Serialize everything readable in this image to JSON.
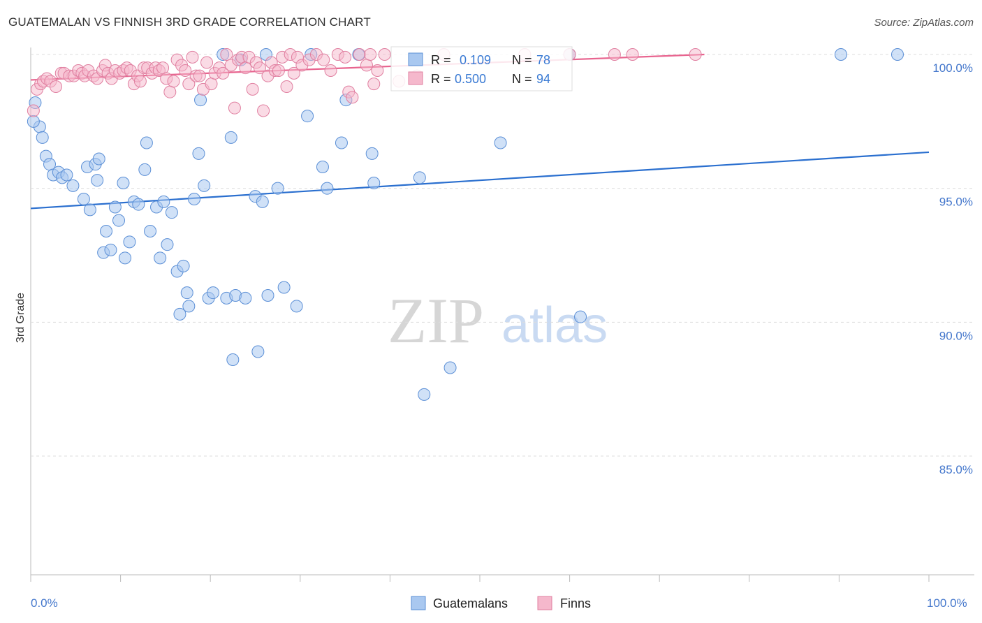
{
  "title": "GUATEMALAN VS FINNISH 3RD GRADE CORRELATION CHART",
  "source": "Source: ZipAtlas.com",
  "watermark": {
    "zip": "ZIP",
    "atlas": "atlas"
  },
  "legend_box": [
    {
      "r_label": "R = ",
      "r_value": "0.109",
      "n_label": "N = ",
      "n_value": "78"
    },
    {
      "r_label": "R = ",
      "r_value": "0.500",
      "n_label": "N = ",
      "n_value": "94"
    }
  ],
  "bottom_legend": [
    "Guatemalans",
    "Finns"
  ],
  "colors": {
    "blue_fill": "#a9c8f0",
    "blue_stroke": "#5b8fd6",
    "blue_line": "#2a6fcf",
    "pink_fill": "#f5b8cc",
    "pink_stroke": "#e07fa0",
    "pink_line": "#e8648f",
    "tick_label": "#4477cc"
  },
  "chart_data": {
    "type": "scatter",
    "title": "GUATEMALAN VS FINNISH 3RD GRADE CORRELATION CHART",
    "xlabel": "",
    "ylabel": "3rd Grade",
    "xlim": [
      0,
      100
    ],
    "ylim": [
      80.5,
      100.7
    ],
    "x_tick_labels": [
      "0.0%",
      "100.0%"
    ],
    "y_ticks": [
      100,
      95,
      90,
      85
    ],
    "y_tick_labels": [
      "100.0%",
      "95.0%",
      "90.0%",
      "85.0%"
    ],
    "grid": true,
    "series": [
      {
        "name": "Guatemalans",
        "r": 0.109,
        "n": 78,
        "trend": [
          [
            0,
            94.25
          ],
          [
            100,
            96.35
          ]
        ],
        "points": [
          [
            0.5,
            98.2
          ],
          [
            1.0,
            97.3
          ],
          [
            1.3,
            96.9
          ],
          [
            1.7,
            96.2
          ],
          [
            2.1,
            95.9
          ],
          [
            2.5,
            95.5
          ],
          [
            3.1,
            95.6
          ],
          [
            3.5,
            95.4
          ],
          [
            4.0,
            95.5
          ],
          [
            4.7,
            95.1
          ],
          [
            5.9,
            94.6
          ],
          [
            6.3,
            95.8
          ],
          [
            6.6,
            94.2
          ],
          [
            7.2,
            95.9
          ],
          [
            7.4,
            95.3
          ],
          [
            7.6,
            96.1
          ],
          [
            8.1,
            92.6
          ],
          [
            8.4,
            93.4
          ],
          [
            8.9,
            92.7
          ],
          [
            9.4,
            94.3
          ],
          [
            9.8,
            93.8
          ],
          [
            10.3,
            95.2
          ],
          [
            10.5,
            92.4
          ],
          [
            11.0,
            93.0
          ],
          [
            11.5,
            94.5
          ],
          [
            12.0,
            94.4
          ],
          [
            12.7,
            95.7
          ],
          [
            12.9,
            96.7
          ],
          [
            13.3,
            93.4
          ],
          [
            14.0,
            94.3
          ],
          [
            14.4,
            92.4
          ],
          [
            14.8,
            94.5
          ],
          [
            15.2,
            92.9
          ],
          [
            15.7,
            94.1
          ],
          [
            16.3,
            91.9
          ],
          [
            16.6,
            90.3
          ],
          [
            17.0,
            92.1
          ],
          [
            17.4,
            91.1
          ],
          [
            17.6,
            90.6
          ],
          [
            18.2,
            94.6
          ],
          [
            18.7,
            96.3
          ],
          [
            18.9,
            98.3
          ],
          [
            19.3,
            95.1
          ],
          [
            19.8,
            90.9
          ],
          [
            20.3,
            91.1
          ],
          [
            21.4,
            100.0
          ],
          [
            21.8,
            90.9
          ],
          [
            22.3,
            96.9
          ],
          [
            22.5,
            88.6
          ],
          [
            22.8,
            91.0
          ],
          [
            23.4,
            99.8
          ],
          [
            23.9,
            90.9
          ],
          [
            25.0,
            94.7
          ],
          [
            25.3,
            88.9
          ],
          [
            25.8,
            94.5
          ],
          [
            26.2,
            100.0
          ],
          [
            26.4,
            91.0
          ],
          [
            27.5,
            95.0
          ],
          [
            28.2,
            91.3
          ],
          [
            29.6,
            90.6
          ],
          [
            30.8,
            97.7
          ],
          [
            31.2,
            100.0
          ],
          [
            32.5,
            95.8
          ],
          [
            33.0,
            95.0
          ],
          [
            34.6,
            96.7
          ],
          [
            35.1,
            98.3
          ],
          [
            36.5,
            100.0
          ],
          [
            38.0,
            96.3
          ],
          [
            38.2,
            95.2
          ],
          [
            43.3,
            95.4
          ],
          [
            43.8,
            87.3
          ],
          [
            46.7,
            88.3
          ],
          [
            52.3,
            96.7
          ],
          [
            60.0,
            100.0
          ],
          [
            61.2,
            90.2
          ],
          [
            90.2,
            100.0
          ],
          [
            96.5,
            100.0
          ],
          [
            0.3,
            97.5
          ]
        ]
      },
      {
        "name": "Finns",
        "r": 0.5,
        "n": 94,
        "trend": [
          [
            0,
            99.05
          ],
          [
            75,
            100.0
          ]
        ],
        "points": [
          [
            0.3,
            97.9
          ],
          [
            0.7,
            98.7
          ],
          [
            1.1,
            98.9
          ],
          [
            1.4,
            99.0
          ],
          [
            1.8,
            99.1
          ],
          [
            2.2,
            99.0
          ],
          [
            2.8,
            98.8
          ],
          [
            3.4,
            99.3
          ],
          [
            3.7,
            99.3
          ],
          [
            4.3,
            99.2
          ],
          [
            4.8,
            99.2
          ],
          [
            5.3,
            99.4
          ],
          [
            5.7,
            99.3
          ],
          [
            6.0,
            99.2
          ],
          [
            6.4,
            99.4
          ],
          [
            7.0,
            99.2
          ],
          [
            7.4,
            99.1
          ],
          [
            8.0,
            99.4
          ],
          [
            8.3,
            99.6
          ],
          [
            8.6,
            99.3
          ],
          [
            9.0,
            99.1
          ],
          [
            9.4,
            99.4
          ],
          [
            9.9,
            99.3
          ],
          [
            10.3,
            99.4
          ],
          [
            10.7,
            99.5
          ],
          [
            11.1,
            99.4
          ],
          [
            11.5,
            98.9
          ],
          [
            11.9,
            99.2
          ],
          [
            12.2,
            99.0
          ],
          [
            12.6,
            99.5
          ],
          [
            13.0,
            99.5
          ],
          [
            13.5,
            99.3
          ],
          [
            13.9,
            99.5
          ],
          [
            14.3,
            99.4
          ],
          [
            14.7,
            99.5
          ],
          [
            15.1,
            99.1
          ],
          [
            15.5,
            98.6
          ],
          [
            15.9,
            99.0
          ],
          [
            16.3,
            99.8
          ],
          [
            16.8,
            99.6
          ],
          [
            17.2,
            99.4
          ],
          [
            17.6,
            98.9
          ],
          [
            18.0,
            99.9
          ],
          [
            18.4,
            99.2
          ],
          [
            18.8,
            99.2
          ],
          [
            19.2,
            98.7
          ],
          [
            19.6,
            99.7
          ],
          [
            20.1,
            98.9
          ],
          [
            20.5,
            99.3
          ],
          [
            21.0,
            99.5
          ],
          [
            21.4,
            99.3
          ],
          [
            21.8,
            100.0
          ],
          [
            22.3,
            99.6
          ],
          [
            22.7,
            98.0
          ],
          [
            23.1,
            99.8
          ],
          [
            23.5,
            99.9
          ],
          [
            23.9,
            99.5
          ],
          [
            24.3,
            99.9
          ],
          [
            24.7,
            98.7
          ],
          [
            25.1,
            99.7
          ],
          [
            25.5,
            99.5
          ],
          [
            25.9,
            97.9
          ],
          [
            26.4,
            99.2
          ],
          [
            26.8,
            99.7
          ],
          [
            27.2,
            99.4
          ],
          [
            27.6,
            99.4
          ],
          [
            28.0,
            99.9
          ],
          [
            28.5,
            98.8
          ],
          [
            28.9,
            100.0
          ],
          [
            29.3,
            99.3
          ],
          [
            29.7,
            99.9
          ],
          [
            30.2,
            99.6
          ],
          [
            31.0,
            99.8
          ],
          [
            31.8,
            100.0
          ],
          [
            32.6,
            99.8
          ],
          [
            33.4,
            99.4
          ],
          [
            34.2,
            100.0
          ],
          [
            35.0,
            99.9
          ],
          [
            35.4,
            98.6
          ],
          [
            35.8,
            98.4
          ],
          [
            36.6,
            100.0
          ],
          [
            37.4,
            99.6
          ],
          [
            37.8,
            100.0
          ],
          [
            38.2,
            98.9
          ],
          [
            38.6,
            99.4
          ],
          [
            39.4,
            100.0
          ],
          [
            41.0,
            99.0
          ],
          [
            43.0,
            99.2
          ],
          [
            46.0,
            100.0
          ],
          [
            55.0,
            100.0
          ],
          [
            60.0,
            100.0
          ],
          [
            65.0,
            100.0
          ],
          [
            67.0,
            100.0
          ],
          [
            74.0,
            100.0
          ]
        ]
      }
    ]
  }
}
